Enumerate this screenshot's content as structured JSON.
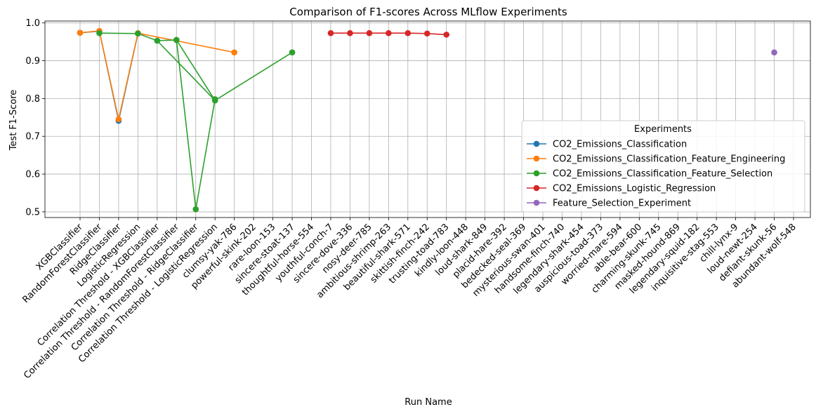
{
  "chart_data": {
    "type": "line",
    "title": "Comparison of F1-scores Across MLflow Experiments",
    "xlabel": "Run Name",
    "ylabel": "Test F1-Score",
    "ylim": [
      0.485,
      1.005
    ],
    "yticks": [
      "0.5",
      "0.6",
      "0.7",
      "0.8",
      "0.9",
      "1.0"
    ],
    "grid": true,
    "legend_title": "Experiments",
    "legend_position": "center-right",
    "categories": [
      "XGBClassifier",
      "RandomForestClassifier",
      "RidgeClassifier",
      "LogisticRegression",
      "Correlation Threshold - XGBClassifier",
      "Correlation Threshold - RandomForestClassifier",
      "Correlation Threshold - RidgeClassifier",
      "Correlation Threshold - LogisticRegression",
      "clumsy-yak-786",
      "powerful-skink-202",
      "rare-loon-153",
      "sincere-stoat-137",
      "thoughtful-horse-554",
      "youthful-conch-7",
      "sincere-dove-336",
      "nosy-deer-785",
      "ambitious-shrimp-263",
      "beautiful-shark-571",
      "skittish-finch-242",
      "trusting-toad-783",
      "kindly-loon-448",
      "loud-shark-849",
      "placid-hare-392",
      "bedecked-seal-369",
      "mysterious-swan-401",
      "handsome-finch-740",
      "legendary-shark-454",
      "auspicious-toad-373",
      "worried-mare-594",
      "able-bear-600",
      "charming-skunk-745",
      "masked-hound-869",
      "legendary-squid-182",
      "inquisitive-stag-553",
      "chill-lynx-9",
      "loud-newt-254",
      "defiant-skunk-56",
      "abundant-wolf-548"
    ],
    "series": [
      {
        "name": "CO2_Emissions_Classification",
        "color": "#1f77b4",
        "points": [
          [
            0,
            0.974
          ],
          [
            1,
            0.978
          ],
          [
            2,
            0.741
          ],
          [
            3,
            0.972
          ]
        ]
      },
      {
        "name": "CO2_Emissions_Classification_Feature_Engineering",
        "color": "#ff7f0e",
        "points": [
          [
            0,
            0.974
          ],
          [
            1,
            0.979
          ],
          [
            2,
            0.745
          ],
          [
            3,
            0.973
          ],
          [
            8,
            0.922
          ]
        ]
      },
      {
        "name": "CO2_Emissions_Classification_Feature_Selection",
        "color": "#2ca02c",
        "points": [
          [
            1,
            0.973
          ],
          [
            3,
            0.972
          ],
          [
            4,
            0.953
          ],
          [
            5,
            0.955
          ],
          [
            6,
            0.507
          ],
          [
            7,
            0.798
          ],
          [
            7,
            0.795
          ],
          [
            5,
            0.955
          ],
          [
            4,
            0.953
          ],
          [
            7,
            0.795
          ],
          [
            11,
            0.922
          ]
        ]
      },
      {
        "name": "CO2_Emissions_Logistic_Regression",
        "color": "#d62728",
        "points": [
          [
            13,
            0.973
          ],
          [
            14,
            0.973
          ],
          [
            15,
            0.973
          ],
          [
            16,
            0.973
          ],
          [
            17,
            0.973
          ],
          [
            18,
            0.972
          ],
          [
            19,
            0.969
          ]
        ]
      },
      {
        "name": "Feature_Selection_Experiment",
        "color": "#9467bd",
        "points": [
          [
            36,
            0.922
          ]
        ]
      }
    ]
  }
}
